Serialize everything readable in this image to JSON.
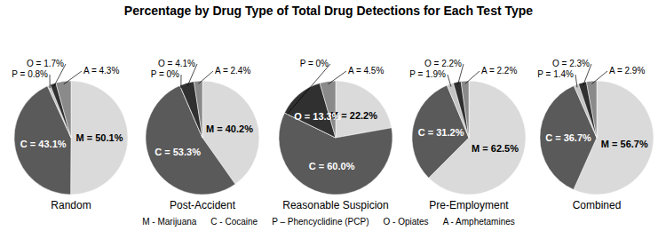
{
  "title": "Percentage by Drug Type of Total Drug Detections for Each Test Type",
  "key": [
    "M - Marijuana",
    "C - Cocaine",
    "P – Phencyclidine (PCP)",
    "O - Opiates",
    "A - Amphetamines"
  ],
  "chart_data": [
    {
      "type": "pie",
      "title": "Random",
      "categories": [
        "M",
        "C",
        "P",
        "O",
        "A"
      ],
      "values": [
        50.1,
        43.1,
        0.8,
        1.7,
        4.3
      ],
      "value_labels": [
        "M = 50.1%",
        "C = 43.1%",
        "P = 0.8%",
        "O = 1.7%",
        "A = 4.3%"
      ],
      "colors": [
        "#dadada",
        "#5a5a5a",
        "#c4c4c4",
        "#303030",
        "#8a8a8a"
      ],
      "data_labels": true
    },
    {
      "type": "pie",
      "title": "Post-Accident",
      "categories": [
        "M",
        "C",
        "P",
        "O",
        "A"
      ],
      "values": [
        40.2,
        53.3,
        0,
        4.1,
        2.4
      ],
      "value_labels": [
        "M = 40.2%",
        "C = 53.3%",
        "P = 0%",
        "O = 4.1%",
        "A = 2.4%"
      ],
      "colors": [
        "#dadada",
        "#5a5a5a",
        "#c4c4c4",
        "#303030",
        "#8a8a8a"
      ],
      "data_labels": true
    },
    {
      "type": "pie",
      "title": "Reasonable Suspicion",
      "categories": [
        "M",
        "C",
        "P",
        "O",
        "A"
      ],
      "values": [
        22.2,
        60.0,
        0,
        13.3,
        4.5
      ],
      "value_labels": [
        "M = 22.2%",
        "C = 60.0%",
        "P = 0%",
        "O = 13.3%",
        "A = 4.5%"
      ],
      "colors": [
        "#dadada",
        "#5a5a5a",
        "#c4c4c4",
        "#303030",
        "#8a8a8a"
      ],
      "data_labels": true
    },
    {
      "type": "pie",
      "title": "Pre-Employment",
      "categories": [
        "M",
        "C",
        "P",
        "O",
        "A"
      ],
      "values": [
        62.5,
        31.2,
        1.9,
        2.2,
        2.2
      ],
      "value_labels": [
        "M = 62.5%",
        "C = 31.2%",
        "P = 1.9%",
        "O = 2.2%",
        "A = 2.2%"
      ],
      "colors": [
        "#dadada",
        "#5a5a5a",
        "#c4c4c4",
        "#303030",
        "#8a8a8a"
      ],
      "data_labels": true
    },
    {
      "type": "pie",
      "title": "Combined",
      "categories": [
        "M",
        "C",
        "P",
        "O",
        "A"
      ],
      "values": [
        56.7,
        36.7,
        1.4,
        2.3,
        2.9
      ],
      "value_labels": [
        "M = 56.7%",
        "C = 36.7%",
        "P = 1.4%",
        "O = 2.3%",
        "A = 2.9%"
      ],
      "colors": [
        "#dadada",
        "#5a5a5a",
        "#c4c4c4",
        "#303030",
        "#8a8a8a"
      ],
      "data_labels": true
    }
  ]
}
